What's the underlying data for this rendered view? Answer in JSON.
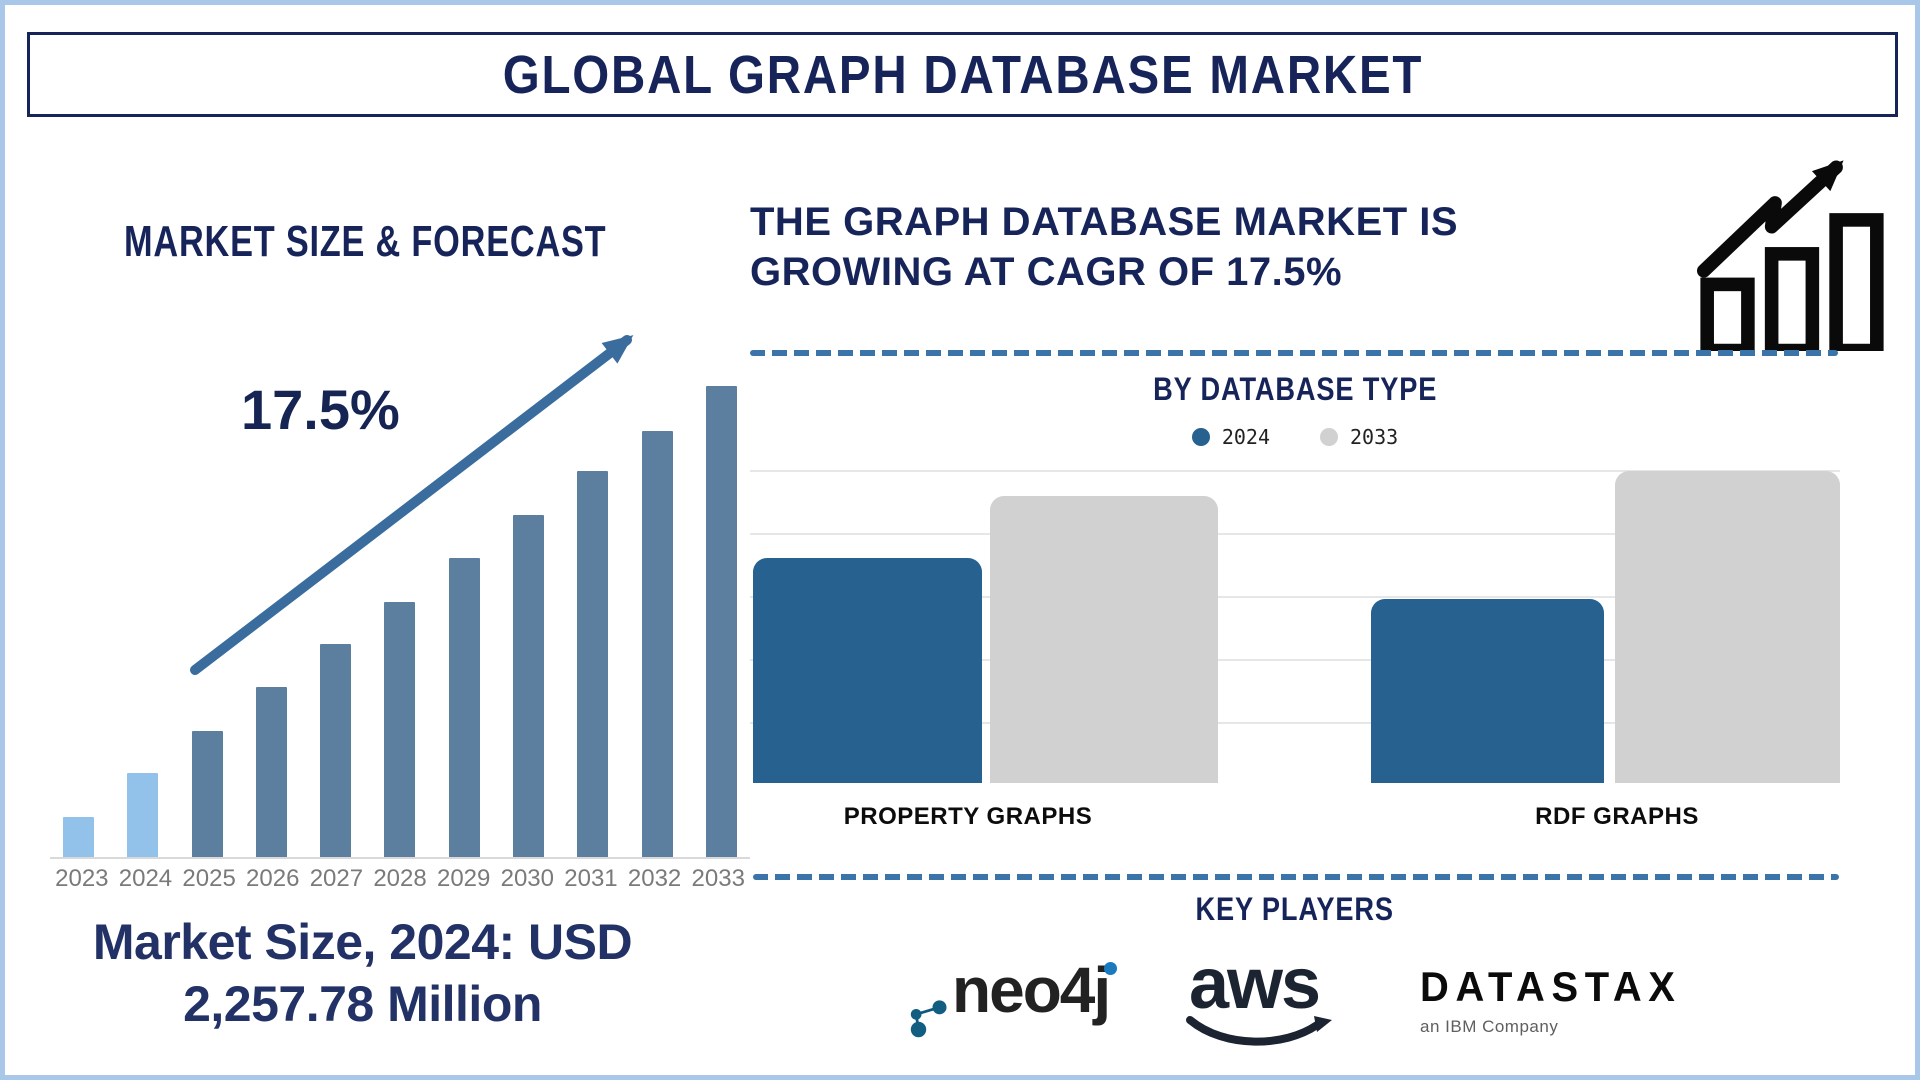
{
  "page": {
    "title": "GLOBAL GRAPH DATABASE MARKET"
  },
  "colors": {
    "frame_light_blue": "#A9C7E9",
    "navy": "#16245A",
    "caption_navy": "#233266",
    "trend_arrow_blue": "#3A6D9E",
    "dashed_divider_blue": "#3B74A8",
    "bar_highlight_light_blue": "#92C1E9",
    "bar_base_slate": "#5C7E9F",
    "bar_2024_blue": "#26618F",
    "bar_2033_gray": "#D1D1D1",
    "gridline_gray": "#E6E6E6",
    "year_label_gray": "#7a7a7a"
  },
  "left_panel": {
    "chart_title": "MARKET SIZE & FORECAST",
    "cagr_label": "17.5%",
    "caption_line1": "Market Size, 2024: USD",
    "caption_line2": "2,257.78 Million"
  },
  "right_panel": {
    "headline_line1": "THE GRAPH DATABASE MARKET IS",
    "headline_line2": "GROWING AT CAGR OF 17.5%",
    "by_type_title": "BY DATABASE TYPE",
    "key_players_title": "KEY PLAYERS",
    "players": [
      {
        "name": "neo4j"
      },
      {
        "name": "aws"
      },
      {
        "name": "DATASTAX",
        "subtitle": "an IBM Company"
      }
    ]
  },
  "chart_data": [
    {
      "type": "bar",
      "title": "MARKET SIZE & FORECAST",
      "annotation": "17.5%",
      "categories": [
        "2023",
        "2024",
        "2025",
        "2026",
        "2027",
        "2028",
        "2029",
        "2030",
        "2031",
        "2032",
        "2033"
      ],
      "values": [
        8.7,
        18.0,
        26.9,
        36.2,
        45.3,
        54.2,
        63.6,
        72.7,
        82.0,
        90.5,
        100
      ],
      "unit": "relative bar height, max = 100 (no value axis shown in figure)",
      "known_values": {
        "2024": "USD 2,257.78 Million",
        "cagr": "17.5%"
      },
      "highlight_count": 2,
      "color_highlight": "#92C1E9",
      "color_base": "#5C7E9F",
      "xlabel": "",
      "ylabel": "",
      "grid": false,
      "value_labels": false
    },
    {
      "type": "bar",
      "title": "BY DATABASE TYPE",
      "categories": [
        "PROPERTY GRAPHS",
        "RDF GRAPHS"
      ],
      "series": [
        {
          "name": "2024",
          "color": "#26618F",
          "values": [
            72,
            59
          ]
        },
        {
          "name": "2033",
          "color": "#D1D1D1",
          "values": [
            92,
            100
          ]
        }
      ],
      "unit": "relative bar height, max = 100 (no value axis shown in figure)",
      "grid": true,
      "legend_position": "top",
      "xlabel": "",
      "ylabel": ""
    }
  ]
}
